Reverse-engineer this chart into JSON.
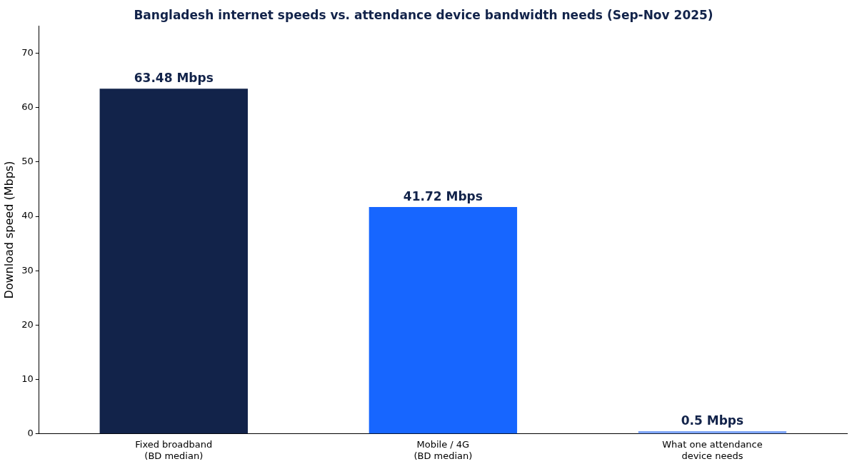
{
  "chart_data": {
    "type": "bar",
    "title": "Bangladesh internet speeds vs. attendance device bandwidth needs (Sep-Nov 2025)",
    "ylabel": "Download speed (Mbps)",
    "categories": [
      "Fixed broadband\n(BD median)",
      "Mobile / 4G\n(BD median)",
      "What one attendance\ndevice needs"
    ],
    "values": [
      63.48,
      41.72,
      0.5
    ],
    "colors": [
      "#12234a",
      "#1766ff",
      "#7fa6f7"
    ],
    "value_labels": [
      "63.48 Mbps",
      "41.72 Mbps",
      "0.5 Mbps"
    ],
    "ylim": [
      0,
      75
    ],
    "yticks": [
      0,
      10,
      20,
      30,
      40,
      50,
      60,
      70
    ],
    "grid": false,
    "legend": false
  }
}
